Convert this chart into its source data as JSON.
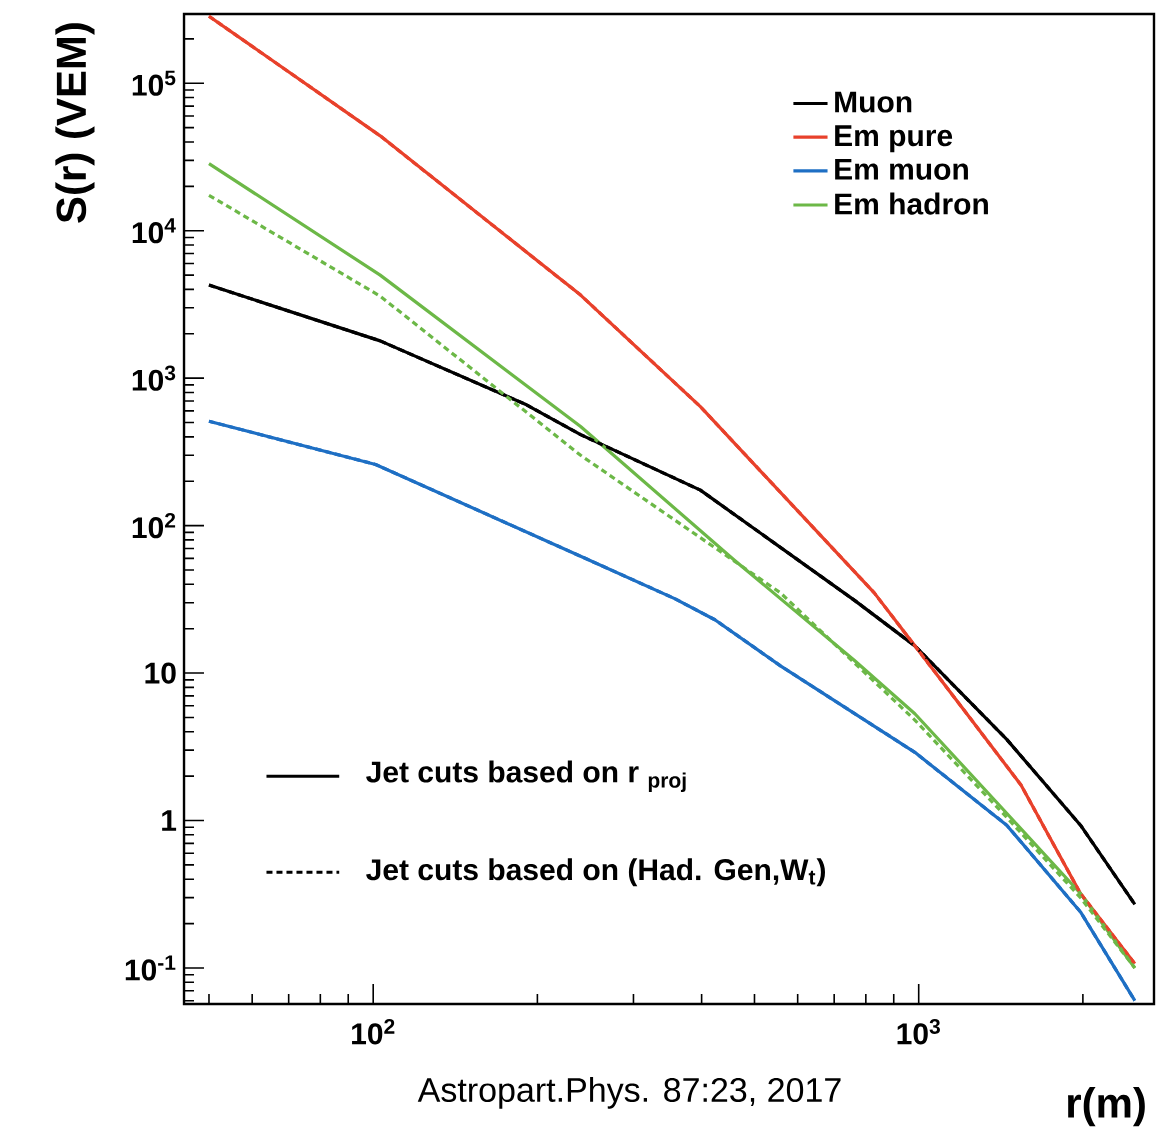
{
  "chart_data": {
    "type": "line",
    "xlabel": "r(m)",
    "ylabel": "S(r) (VEM)",
    "log": "xy",
    "legend": "top right",
    "grid": false,
    "xlim": [
      45,
      2700
    ],
    "ylim": [
      0.057,
      295000
    ],
    "xticks": [
      {
        "value": 100,
        "label": "10$^{2}$"
      },
      {
        "value": 1000,
        "label": "10$^{3}$"
      }
    ],
    "yticks": [
      {
        "value": 0.1,
        "label": "10$^{-1}$"
      },
      1,
      10,
      {
        "value": 100,
        "label": "10$^{2}$"
      },
      {
        "value": 1000,
        "label": "10$^{3}$"
      },
      {
        "value": 10000,
        "label": "10$^{4}$"
      },
      {
        "value": 100000,
        "label": "10$^{5}$"
      }
    ],
    "series": [
      {
        "name": "Muon",
        "color": "#000000",
        "line_style": "solid",
        "x": [
          50,
          103,
          191,
          240,
          398,
          764,
          984,
          1450,
          1980,
          2490
        ],
        "values": [
          4280,
          1790,
          660,
          414,
          174,
          31,
          15.3,
          3.55,
          0.93,
          0.27
        ]
      },
      {
        "name": "Em pure",
        "color": "#e8412b",
        "line_style": "solid",
        "x": [
          50,
          103,
          240,
          398,
          829,
          984,
          1225,
          1540,
          1980,
          2490
        ],
        "values": [
          285000,
          44000,
          3660,
          641,
          35,
          15.3,
          5.3,
          1.74,
          0.32,
          0.107
        ]
      },
      {
        "name": "Em muon",
        "color": "#1e6fc4",
        "line_style": "solid",
        "x": [
          50,
          101,
          240,
          357,
          423,
          558,
          984,
          1450,
          1980,
          2490
        ],
        "values": [
          510,
          260,
          62,
          32,
          23,
          11.2,
          2.9,
          0.93,
          0.24,
          0.06
        ]
      },
      {
        "name": "Em hadron",
        "color": "#6cb847",
        "line_style": "solid",
        "x": [
          50,
          103,
          240,
          460,
          760,
          984,
          1450,
          1980,
          2490
        ],
        "values": [
          28500,
          5000,
          470,
          58,
          12.3,
          5.3,
          1.12,
          0.32,
          0.1
        ]
      },
      {
        "color": "#000000",
        "line_style": "dashed",
        "x": [
          50,
          103,
          191,
          240,
          398,
          764,
          984,
          1450,
          1980,
          2490
        ],
        "values": [
          4280,
          1790,
          660,
          414,
          174,
          31,
          15.3,
          3.55,
          0.93,
          0.27
        ]
      },
      {
        "color": "#e8412b",
        "line_style": "dashed",
        "x": [
          50,
          103,
          240,
          398,
          829,
          984,
          1225,
          1540,
          1980,
          2490
        ],
        "values": [
          285000,
          44000,
          3660,
          641,
          35,
          15.3,
          5.3,
          1.74,
          0.32,
          0.107
        ]
      },
      {
        "color": "#1e6fc4",
        "line_style": "dashed",
        "x": [
          50,
          101,
          240,
          357,
          423,
          558,
          984,
          1450,
          1980,
          2490
        ],
        "values": [
          510,
          260,
          62,
          32,
          23,
          11.2,
          2.9,
          0.93,
          0.24,
          0.06
        ]
      },
      {
        "color": "#6cb847",
        "line_style": "dashed",
        "x": [
          50,
          103,
          240,
          558,
          984,
          1450,
          1980,
          2490
        ],
        "values": [
          17400,
          3600,
          300,
          35,
          4.8,
          1.05,
          0.3,
          0.1
        ]
      }
    ],
    "annotations": [
      "Jet cuts based on r $_{proj}$",
      "Jet cuts based on (Had. Gen,W$_{t}$)",
      "Astropart.Phys. 87:23, 2017"
    ]
  }
}
